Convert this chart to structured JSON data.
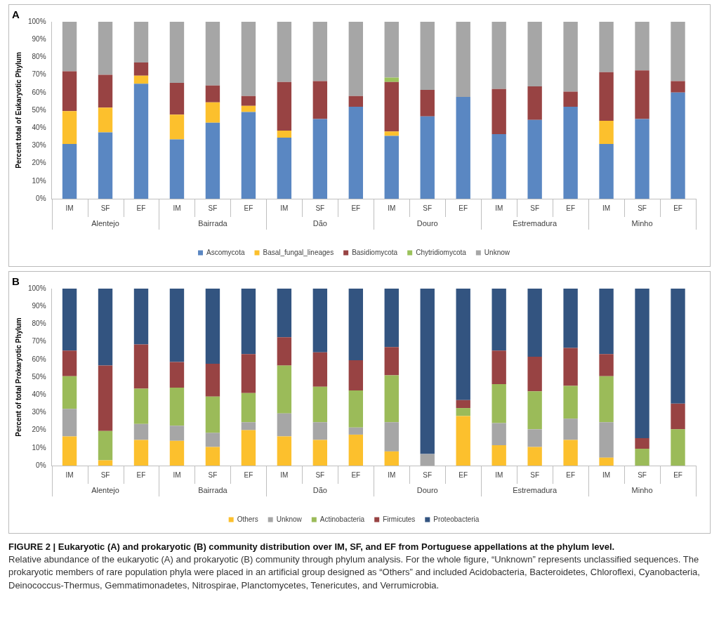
{
  "chart_data": [
    {
      "type": "bar",
      "title": "A",
      "ylabel": "Percent total of Eukaryotic Phylum",
      "stacked": true,
      "legend": "bottom",
      "ylim": [
        0,
        100
      ],
      "yticks": [
        {
          "value": 0,
          "label": "0%"
        },
        {
          "value": 10,
          "label": "10%"
        },
        {
          "value": 20,
          "label": "20%"
        },
        {
          "value": 30,
          "label": "30%"
        },
        {
          "value": 40,
          "label": "40%"
        },
        {
          "value": 50,
          "label": "50%"
        },
        {
          "value": 60,
          "label": "60%"
        },
        {
          "value": 70,
          "label": "70%"
        },
        {
          "value": 80,
          "label": "80%"
        },
        {
          "value": 90,
          "label": "90%"
        },
        {
          "value": 100,
          "label": "100%"
        }
      ],
      "categories": [
        "IM",
        "SF",
        "EF",
        "IM",
        "SF",
        "EF",
        "IM",
        "SF",
        "EF",
        "IM",
        "SF",
        "EF",
        "IM",
        "SF",
        "EF",
        "IM",
        "SF",
        "EF"
      ],
      "annotations": [
        "Alentejo",
        "Bairrada",
        "Dão",
        "Douro",
        "Estremadura",
        "Minho"
      ],
      "series": [
        {
          "name": "Ascomycota",
          "color": "#5a87c2",
          "values": [
            31,
            37.5,
            65,
            33.5,
            43,
            49,
            34.5,
            45,
            52,
            35.5,
            46.5,
            57.5,
            36.5,
            44.5,
            52,
            31,
            45,
            60
          ]
        },
        {
          "name": "Basal_fungal_lineages",
          "color": "#fcc02d",
          "values": [
            18.5,
            14,
            4.5,
            14,
            11.5,
            3.5,
            4,
            0,
            0,
            2.5,
            0,
            0,
            0,
            0,
            0,
            13,
            0,
            0
          ]
        },
        {
          "name": "Basidiomycota",
          "color": "#984343",
          "values": [
            22.5,
            18.5,
            7.5,
            18,
            9.5,
            5.5,
            27.5,
            21.5,
            6,
            28,
            15,
            0,
            25.5,
            19,
            8.5,
            27.5,
            27.5,
            6.5
          ]
        },
        {
          "name": "Chytridiomycota",
          "color": "#9bc25b",
          "values": [
            0,
            0,
            0,
            0,
            0,
            0,
            0,
            0,
            0,
            2.5,
            0,
            0,
            0,
            0,
            0,
            0,
            0,
            0
          ]
        },
        {
          "name": "Unknow",
          "color": "#a6a6a6",
          "values": [
            28,
            30,
            23,
            34.5,
            36,
            42,
            34,
            33.5,
            42,
            31.5,
            38.5,
            42.5,
            38,
            36.5,
            39.5,
            28.5,
            27.5,
            33.5
          ]
        }
      ]
    },
    {
      "type": "bar",
      "title": "B",
      "ylabel": "Percent of total Prokaryotic Phylum",
      "stacked": true,
      "legend": "bottom",
      "ylim": [
        0,
        100
      ],
      "yticks": [
        {
          "value": 0,
          "label": "0%"
        },
        {
          "value": 10,
          "label": "10%"
        },
        {
          "value": 20,
          "label": "20%"
        },
        {
          "value": 30,
          "label": "30%"
        },
        {
          "value": 40,
          "label": "40%"
        },
        {
          "value": 50,
          "label": "50%"
        },
        {
          "value": 60,
          "label": "60%"
        },
        {
          "value": 70,
          "label": "70%"
        },
        {
          "value": 80,
          "label": "80%"
        },
        {
          "value": 90,
          "label": "90%"
        },
        {
          "value": 100,
          "label": "100%"
        }
      ],
      "categories": [
        "IM",
        "SF",
        "EF",
        "IM",
        "SF",
        "EF",
        "IM",
        "SF",
        "EF",
        "IM",
        "SF",
        "EF",
        "IM",
        "SF",
        "EF",
        "IM",
        "SF",
        "EF"
      ],
      "annotations": [
        "Alentejo",
        "Bairrada",
        "Dão",
        "Douro",
        "Estremadura",
        "Minho"
      ],
      "series": [
        {
          "name": "Others",
          "color": "#fcc02d",
          "values": [
            16.5,
            3,
            14.5,
            14,
            10.5,
            20,
            16.5,
            14.5,
            17.5,
            8,
            0,
            28,
            11.5,
            10.5,
            14.5,
            4.5,
            0,
            0
          ]
        },
        {
          "name": "Unknow",
          "color": "#a6a6a6",
          "values": [
            15.5,
            0,
            9,
            8.5,
            8,
            4.5,
            13,
            10,
            4,
            16.5,
            6.5,
            0,
            12.5,
            10,
            12,
            20,
            0,
            0
          ]
        },
        {
          "name": "Actinobacteria",
          "color": "#9bbb59",
          "values": [
            18.5,
            16.5,
            20,
            21.5,
            20.5,
            16.5,
            27,
            20,
            21,
            26.5,
            0,
            4.5,
            22,
            21.5,
            18.5,
            26,
            9.5,
            20.5
          ]
        },
        {
          "name": "Firmicutes",
          "color": "#984343",
          "values": [
            14.5,
            37,
            25,
            14.5,
            18.5,
            22,
            16,
            19.5,
            17,
            16,
            0,
            4.5,
            19,
            19.5,
            21.5,
            12.5,
            6,
            14.5
          ]
        },
        {
          "name": "Proteobacteria",
          "color": "#335480",
          "values": [
            35,
            43.5,
            31.5,
            41.5,
            42.5,
            37,
            27.5,
            36,
            40.5,
            33,
            93.5,
            63,
            35,
            38.5,
            33.5,
            37,
            84.5,
            65
          ]
        }
      ]
    },
    {
      "type": "other",
      "title": "FIGURE 2 | Eukaryotic (A) and prokaryotic (B) community distribution over IM, SF, and EF from Portuguese appellations at the phylum level.",
      "annotations": [
        "Relative abundance of the eukaryotic (A) and prokaryotic (B) community through phylum analysis. For the whole figure, “Unknown” represents unclassified sequences. The prokaryotic members of rare population phyla were placed in an artificial group designed as “Others” and included Acidobacteria, Bacteroidetes, Chloroflexi, Cyanobacteria, Deinococcus-Thermus, Gemmatimonadetes, Nitrospirae, Planctomycetes, Tenericutes, and Verrumicrobia."
      ]
    }
  ]
}
